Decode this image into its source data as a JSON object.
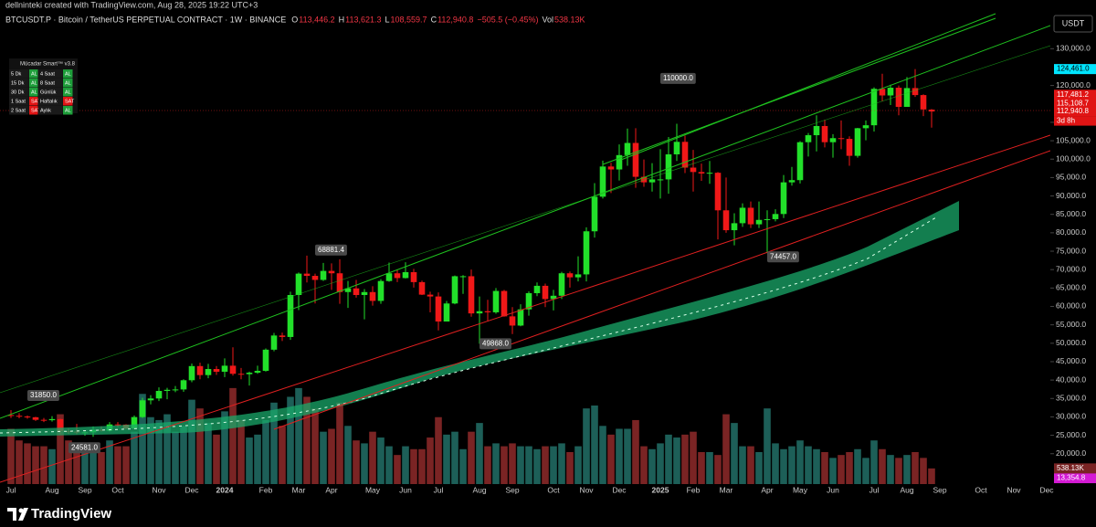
{
  "header": {
    "created": "dellninteki created with TradingView.com, Aug 28, 2025 19:22 UTC+3",
    "symbol": "BTCUSDT.P · Bitcoin / TetherUS PERPETUAL CONTRACT · 1W · BINANCE",
    "ohlc": [
      {
        "key": "O",
        "value": "113,446.2"
      },
      {
        "key": "H",
        "value": "113,621.3"
      },
      {
        "key": "L",
        "value": "108,559.7"
      },
      {
        "key": "C",
        "value": "112,940.8"
      }
    ],
    "change": "−505.5 (−0.45%)",
    "vol_key": "Vol",
    "vol_value": "538.13K",
    "currency": "USDT",
    "logo": "TradingView"
  },
  "indicator_table": {
    "title": "Mücadar Smart™ v3.8",
    "rows": [
      [
        "5 Dk",
        "AL",
        "4 Saat",
        "AL"
      ],
      [
        "15 Dk",
        "AL",
        "8 Saat",
        "AL"
      ],
      [
        "30 Dk",
        "AL",
        "Günlük",
        "AL"
      ],
      [
        "1 Saat",
        "SAT",
        "Haftalık",
        "SAT"
      ],
      [
        "2 Saat",
        "SAT",
        "Aylık",
        "AL"
      ]
    ]
  },
  "chart_data": {
    "type": "candlestick",
    "up_color": "#22e02a",
    "down_color": "#f01818",
    "volume_up_color": "#1d5f58",
    "volume_down_color": "#7a2424",
    "grid": false,
    "categories": [
      "Jul",
      null,
      null,
      null,
      null,
      "Aug",
      null,
      null,
      null,
      "Sep",
      null,
      null,
      null,
      "Oct",
      null,
      null,
      null,
      null,
      "Nov",
      null,
      null,
      null,
      "Dec",
      null,
      null,
      null,
      "2024",
      null,
      null,
      null,
      null,
      "Feb",
      null,
      null,
      null,
      "Mar",
      null,
      null,
      null,
      "Apr",
      null,
      null,
      null,
      null,
      "May",
      null,
      null,
      null,
      "Jun",
      null,
      null,
      null,
      "Jul",
      null,
      null,
      null,
      null,
      "Aug",
      null,
      null,
      null,
      "Sep",
      null,
      null,
      null,
      null,
      "Oct",
      null,
      null,
      null,
      "Nov",
      null,
      null,
      null,
      "Dec",
      null,
      null,
      null,
      null,
      "2025",
      null,
      null,
      null,
      "Feb",
      null,
      null,
      null,
      "Mar",
      null,
      null,
      null,
      null,
      "Apr",
      null,
      null,
      null,
      "May",
      null,
      null,
      null,
      "Jun",
      null,
      null,
      null,
      null,
      "Jul",
      null,
      null,
      null,
      "Aug",
      null,
      null,
      null,
      "Sep",
      null,
      null,
      null,
      null,
      "Oct",
      null,
      null,
      null,
      "Nov",
      null,
      null,
      null,
      "Dec",
      null
    ],
    "open": [
      30500,
      30300,
      30100,
      29900,
      29200,
      29100,
      29400,
      26100,
      26000,
      25800,
      25800,
      26500,
      26250,
      27950,
      27900,
      26850,
      29950,
      34500,
      35000,
      37050,
      37350,
      37450,
      39950,
      43800,
      41350,
      43000,
      42250,
      43900,
      41700,
      41600,
      42000,
      42500,
      48250,
      52100,
      51700,
      63100,
      68900,
      68300,
      67200,
      69650,
      69000,
      63900,
      64900,
      63100,
      63900,
      61500,
      66900,
      69000,
      67700,
      69300,
      66600,
      63200,
      62700,
      55900,
      60800,
      68200,
      68200,
      58100,
      58700,
      58400,
      64200,
      57300,
      54800,
      59200,
      63600,
      65600,
      62000,
      62900,
      69000,
      67900,
      68700,
      80400,
      89800,
      98000,
      97200,
      101100,
      104400,
      95200,
      93700,
      94500,
      94500,
      101300,
      104700,
      97700,
      96500,
      96100,
      96300,
      86100,
      80700,
      82600,
      86800,
      82300,
      83500,
      83700,
      85100,
      93700,
      94300,
      104600,
      106500,
      109000,
      104600,
      105700,
      105500,
      100900,
      108400,
      109200,
      119100,
      117300,
      119400,
      114200,
      119300,
      117400,
      113446.2,
      null,
      null,
      null,
      null,
      null,
      null,
      null,
      null,
      null,
      null,
      null,
      null,
      null,
      null,
      null
    ],
    "high": [
      31850,
      31000,
      30400,
      30000,
      29700,
      30200,
      29500,
      26800,
      28100,
      26100,
      27400,
      27400,
      28600,
      28600,
      28000,
      30400,
      35200,
      35900,
      38000,
      37900,
      38400,
      40200,
      44500,
      44700,
      44400,
      43800,
      45900,
      48900,
      43300,
      42300,
      43900,
      48600,
      52800,
      52900,
      64000,
      69200,
      73800,
      68900,
      71800,
      71700,
      72800,
      66900,
      67200,
      64700,
      65500,
      67400,
      71900,
      70000,
      72000,
      70200,
      67000,
      64000,
      63800,
      61500,
      68400,
      68500,
      70000,
      62700,
      61800,
      65000,
      64500,
      59800,
      60600,
      64100,
      66500,
      66200,
      64500,
      69400,
      69500,
      73600,
      81500,
      93500,
      99600,
      99000,
      104000,
      108300,
      108400,
      99900,
      98900,
      102700,
      106000,
      109600,
      106400,
      102500,
      98800,
      99500,
      96500,
      95000,
      85300,
      88000,
      88500,
      88500,
      86100,
      86400,
      95700,
      97900,
      104900,
      107100,
      111900,
      110700,
      106800,
      110500,
      106200,
      108500,
      110500,
      119500,
      123200,
      120200,
      120000,
      122300,
      124461,
      117600,
      113621.3,
      null,
      null,
      null,
      null,
      null,
      null,
      null,
      null,
      null,
      null,
      null,
      null,
      null,
      null,
      null
    ],
    "low": [
      29700,
      29600,
      29500,
      28900,
      28600,
      28700,
      25200,
      25400,
      25300,
      24900,
      24581,
      26000,
      26000,
      27200,
      26500,
      26700,
      29700,
      33400,
      34300,
      34800,
      36700,
      36800,
      39400,
      40200,
      40500,
      41400,
      40800,
      41200,
      40200,
      38500,
      41700,
      42300,
      47800,
      50600,
      50900,
      59000,
      66500,
      60800,
      66900,
      64500,
      60700,
      59600,
      62400,
      56500,
      60200,
      60700,
      66700,
      66600,
      67600,
      65100,
      63100,
      58400,
      53500,
      56500,
      60600,
      63400,
      57200,
      49868,
      56100,
      58000,
      57200,
      52500,
      54600,
      57500,
      62800,
      59800,
      58900,
      62000,
      65100,
      66800,
      66800,
      78700,
      89300,
      90800,
      94200,
      98200,
      92200,
      92500,
      91200,
      89300,
      90600,
      99500,
      96200,
      91200,
      94100,
      93300,
      78200,
      80000,
      76600,
      81600,
      81300,
      81300,
      74457,
      83100,
      84000,
      92800,
      93400,
      100700,
      102100,
      103200,
      100400,
      102700,
      98200,
      100400,
      105100,
      107500,
      115700,
      114700,
      111900,
      114300,
      116900,
      111700,
      108559.7,
      null,
      null,
      null,
      null,
      null,
      null,
      null,
      null,
      null,
      null,
      null,
      null,
      null,
      null,
      null
    ],
    "close": [
      30300,
      30100,
      29900,
      29200,
      29100,
      29400,
      26100,
      26000,
      25800,
      25800,
      26500,
      26250,
      27950,
      27900,
      26850,
      29950,
      34500,
      35000,
      37050,
      37350,
      37450,
      39950,
      43800,
      41350,
      43000,
      42250,
      43900,
      41700,
      41600,
      42000,
      42500,
      48250,
      52100,
      51700,
      63100,
      68900,
      68300,
      67200,
      69650,
      69000,
      63900,
      64900,
      63100,
      63900,
      61500,
      66900,
      69000,
      67700,
      69300,
      66600,
      63200,
      62700,
      55900,
      60800,
      68200,
      68200,
      58100,
      58700,
      58400,
      64200,
      57300,
      54800,
      59200,
      63600,
      65600,
      62000,
      62900,
      69000,
      67900,
      68700,
      80400,
      89800,
      98000,
      97200,
      101100,
      104400,
      95200,
      93700,
      94500,
      94500,
      101300,
      104700,
      97700,
      96500,
      96100,
      96300,
      86100,
      80700,
      82600,
      86800,
      82300,
      83500,
      83700,
      85100,
      93700,
      94300,
      104600,
      106500,
      109000,
      104600,
      105700,
      105500,
      100900,
      108400,
      109200,
      119100,
      117300,
      119400,
      114200,
      119300,
      117400,
      113500,
      112940.8,
      null,
      null,
      null,
      null,
      null,
      null,
      null,
      null,
      null,
      null,
      null,
      null,
      null,
      null,
      null
    ],
    "volume": [
      1900,
      1500,
      1400,
      1300,
      1300,
      1200,
      2400,
      1500,
      1300,
      1200,
      1400,
      1100,
      1500,
      1300,
      1300,
      1800,
      3100,
      2300,
      2200,
      2400,
      1800,
      2000,
      2900,
      2600,
      2100,
      1700,
      2500,
      3300,
      2200,
      1600,
      1700,
      2200,
      2800,
      2000,
      3000,
      3300,
      3000,
      2600,
      1800,
      1900,
      2800,
      2000,
      1500,
      1400,
      1800,
      1600,
      1300,
      1000,
      1300,
      1200,
      1200,
      1600,
      2300,
      1700,
      1800,
      1200,
      1800,
      2100,
      1300,
      1400,
      1300,
      1400,
      1300,
      1300,
      1200,
      1300,
      1300,
      1400,
      1100,
      1300,
      2600,
      2700,
      2000,
      1700,
      1900,
      1900,
      2200,
      1300,
      1200,
      1400,
      1700,
      1600,
      1700,
      1800,
      1100,
      1100,
      1000,
      2400,
      2100,
      1300,
      1300,
      1100,
      2600,
      1400,
      1200,
      1300,
      1500,
      1300,
      1200,
      1100,
      900,
      1000,
      1100,
      1200,
      900,
      1500,
      1200,
      1000,
      900,
      1000,
      1100,
      900,
      538.13,
      null,
      null,
      null,
      null,
      null,
      null,
      null,
      null,
      null,
      null,
      null,
      null,
      null,
      null,
      null
    ],
    "volume_last_label": "538.13K",
    "ylim": [
      11750,
      139750
    ],
    "y2lim": [
      0,
      16200
    ],
    "yticks": [
      {
        "value": 20000,
        "label": "20,000.0"
      },
      {
        "value": 25000,
        "label": "25,000.0"
      },
      {
        "value": 30000,
        "label": "30,000.0"
      },
      {
        "value": 35000,
        "label": "35,000.0"
      },
      {
        "value": 40000,
        "label": "40,000.0"
      },
      {
        "value": 45000,
        "label": "45,000.0"
      },
      {
        "value": 50000,
        "label": "50,000.0"
      },
      {
        "value": 55000,
        "label": "55,000.0"
      },
      {
        "value": 60000,
        "label": "60,000.0"
      },
      {
        "value": 65000,
        "label": "65,000.0"
      },
      {
        "value": 70000,
        "label": "70,000.0"
      },
      {
        "value": 75000,
        "label": "75,000.0"
      },
      {
        "value": 80000,
        "label": "80,000.0"
      },
      {
        "value": 85000,
        "label": "85,000.0"
      },
      {
        "value": 90000,
        "label": "90,000.0"
      },
      {
        "value": 95000,
        "label": "95,000.0"
      },
      {
        "value": 100000,
        "label": "100,000.0"
      },
      {
        "value": 105000,
        "label": "105,000.0"
      },
      {
        "value": 110000,
        "label": "110,000.0"
      },
      {
        "value": 120000,
        "label": "120,000.0"
      },
      {
        "value": 130000,
        "label": "130,000.0"
      }
    ],
    "markers": [
      {
        "value": 124461,
        "label": "124,461.0",
        "color": "#00e5ff"
      },
      {
        "value": 117481.2,
        "label": "117,481.2",
        "color": "#e01414"
      },
      {
        "value": 115108.7,
        "label": "115,108.7",
        "color": "#e01414"
      },
      {
        "value": 112940.8,
        "label": "112,940.8",
        "color": "#e01414"
      },
      {
        "value": 13354.8,
        "label": "13,354.8",
        "color": "#d41ad4"
      }
    ],
    "countdown": "3d 8h",
    "annotations": [
      {
        "value": 31850,
        "label": "31850.0"
      },
      {
        "value": 24581,
        "label": "24581.0"
      },
      {
        "value": 68881.4,
        "label": "68881.4"
      },
      {
        "value": 49868,
        "label": "49868.0"
      },
      {
        "value": 110000,
        "label": "110000.0"
      },
      {
        "value": 74457,
        "label": "74457.0"
      }
    ]
  }
}
